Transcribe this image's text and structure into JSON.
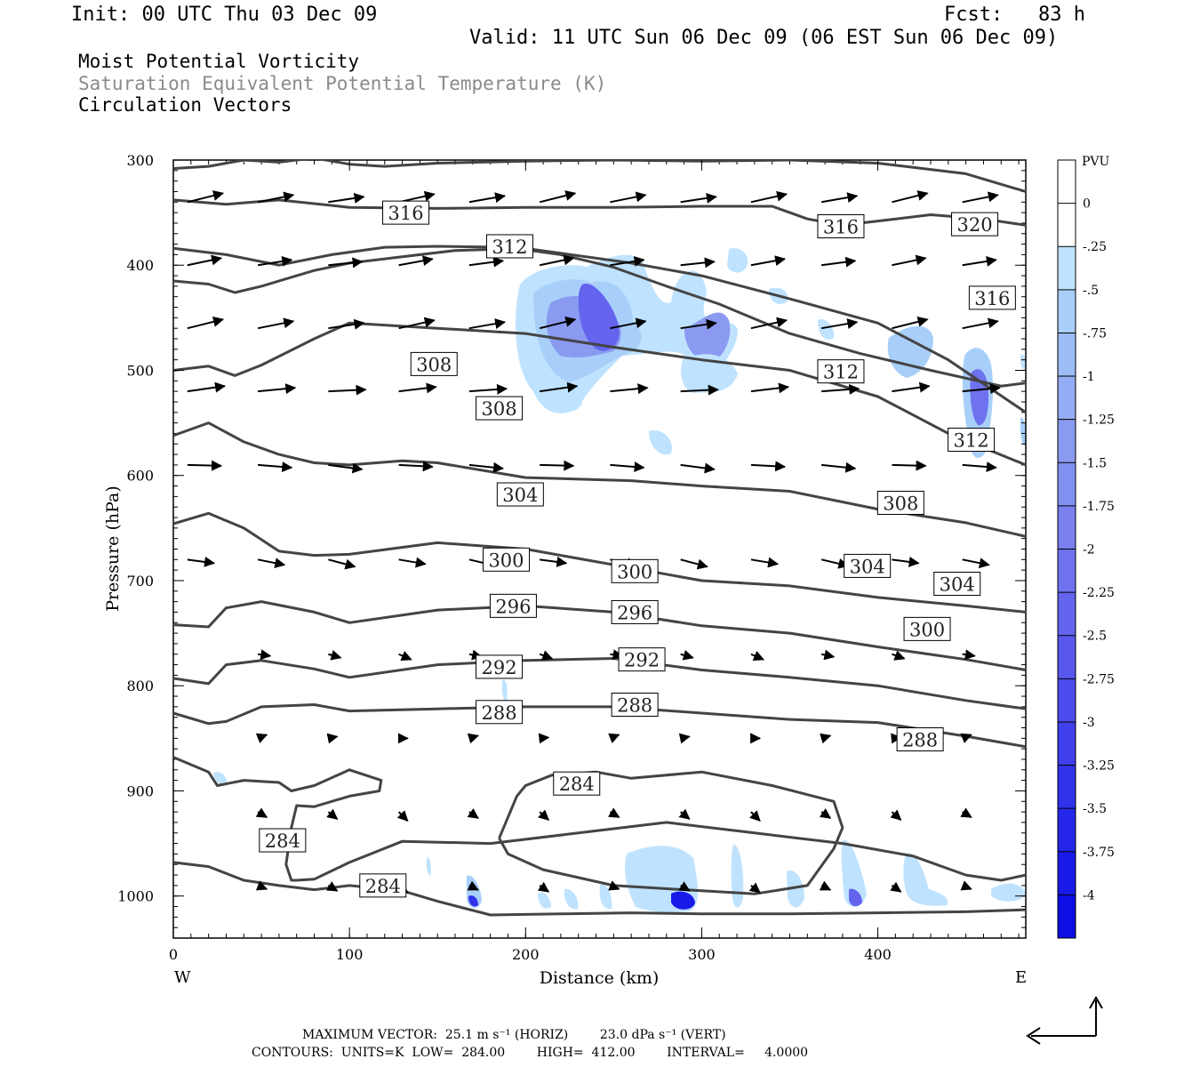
{
  "header": {
    "init": "Init: 00 UTC Thu 03 Dec 09",
    "fcst": "Fcst:   83 h",
    "valid": "Valid: 11 UTC Sun 06 Dec 09 (06 EST Sun 06 Dec 09)",
    "field1": "Moist Potential Vorticity",
    "field2": "Saturation Equivalent Potential Temperature (K)",
    "field3": "Circulation Vectors"
  },
  "footer": {
    "max_vector": "MAXIMUM VECTOR:  25.1 m s⁻¹ (HORIZ)        23.0 dPa s⁻¹ (VERT)",
    "contours": "CONTOURS:  UNITS=K  LOW=  284.00        HIGH=  412.00        INTERVAL=     4.0000"
  },
  "chart_data": {
    "type": "contour",
    "xlabel": "Distance (km)",
    "ylabel": "Pressure (hPa)",
    "xlim": [
      0,
      484
    ],
    "ylim": [
      1040,
      300
    ],
    "x_ticks": [
      "0",
      "100",
      "200",
      "300",
      "400"
    ],
    "y_ticks": [
      "300",
      "400",
      "500",
      "600",
      "700",
      "800",
      "900",
      "1000"
    ],
    "x_end_labels": {
      "left": "W",
      "right": "E"
    },
    "colorbar": {
      "unit": "PVU",
      "labels": [
        "0",
        "-.25",
        "-.5",
        "-.75",
        "-1",
        "-1.25",
        "-1.5",
        "-1.75",
        "-2",
        "-2.25",
        "-2.5",
        "-2.75",
        "-3",
        "-3.25",
        "-3.5",
        "-3.75",
        "-4"
      ],
      "colors": [
        "#ffffff",
        "#ffffff",
        "#bfe3ff",
        "#a8cff9",
        "#9cbdf5",
        "#94acf3",
        "#8a9af1",
        "#8290f1",
        "#7a80f0",
        "#6f72ef",
        "#6464ef",
        "#5858ee",
        "#4c4ced",
        "#3f3fec",
        "#3232eb",
        "#2626ea",
        "#1a1ae8",
        "#0e0ee4"
      ]
    },
    "contour_labels": [
      {
        "text": "316",
        "x": 132,
        "p": 350
      },
      {
        "text": "316",
        "x": 379,
        "p": 363
      },
      {
        "text": "320",
        "x": 455,
        "p": 361
      },
      {
        "text": "312",
        "x": 191,
        "p": 382
      },
      {
        "text": "316",
        "x": 465,
        "p": 431
      },
      {
        "text": "308",
        "x": 148,
        "p": 494
      },
      {
        "text": "312",
        "x": 379,
        "p": 501
      },
      {
        "text": "308",
        "x": 185,
        "p": 536
      },
      {
        "text": "312",
        "x": 453,
        "p": 566
      },
      {
        "text": "304",
        "x": 197,
        "p": 618
      },
      {
        "text": "308",
        "x": 413,
        "p": 626
      },
      {
        "text": "300",
        "x": 189,
        "p": 680
      },
      {
        "text": "300",
        "x": 262,
        "p": 691
      },
      {
        "text": "304",
        "x": 394,
        "p": 686
      },
      {
        "text": "304",
        "x": 445,
        "p": 703
      },
      {
        "text": "296",
        "x": 193,
        "p": 724
      },
      {
        "text": "296",
        "x": 262,
        "p": 730
      },
      {
        "text": "300",
        "x": 428,
        "p": 746
      },
      {
        "text": "292",
        "x": 185,
        "p": 782
      },
      {
        "text": "292",
        "x": 266,
        "p": 775
      },
      {
        "text": "288",
        "x": 185,
        "p": 825
      },
      {
        "text": "288",
        "x": 262,
        "p": 818
      },
      {
        "text": "288",
        "x": 424,
        "p": 851
      },
      {
        "text": "284",
        "x": 229,
        "p": 893
      },
      {
        "text": "284",
        "x": 62,
        "p": 947
      },
      {
        "text": "284",
        "x": 119,
        "p": 990
      }
    ],
    "contour_lines": [
      {
        "x": [
          0,
          20,
          40,
          60,
          80,
          100,
          120,
          150,
          200,
          250,
          300,
          350,
          400,
          450,
          484
        ],
        "p": [
          308,
          306,
          300,
          302,
          298,
          304,
          306,
          303,
          301,
          300,
          301,
          300,
          303,
          313,
          330
        ]
      },
      {
        "x": [
          0,
          30,
          60,
          100,
          150,
          200,
          250,
          300,
          340,
          360,
          380,
          400,
          430,
          460,
          484
        ],
        "p": [
          338,
          342,
          338,
          345,
          346,
          345,
          345,
          344,
          344,
          356,
          362,
          358,
          352,
          356,
          362
        ]
      },
      {
        "x": [
          0,
          30,
          60,
          90,
          120,
          150,
          190,
          220,
          250,
          280,
          310,
          350,
          390,
          430,
          470,
          484
        ],
        "p": [
          384,
          390,
          400,
          390,
          383,
          382,
          383,
          390,
          402,
          420,
          437,
          465,
          484,
          500,
          515,
          512
        ]
      },
      {
        "x": [
          0,
          20,
          35,
          50,
          70,
          80,
          100,
          130,
          160,
          200,
          260,
          300,
          350,
          400,
          440,
          484
        ],
        "p": [
          415,
          418,
          426,
          420,
          410,
          405,
          398,
          392,
          386,
          384,
          398,
          410,
          432,
          455,
          490,
          540
        ]
      },
      {
        "x": [
          0,
          20,
          35,
          50,
          80,
          100,
          150,
          200,
          250,
          300,
          350,
          400,
          440,
          484
        ],
        "p": [
          500,
          496,
          505,
          495,
          470,
          455,
          460,
          465,
          478,
          490,
          500,
          525,
          560,
          590
        ]
      },
      {
        "x": [
          0,
          20,
          40,
          60,
          80,
          100,
          130,
          150,
          200,
          260,
          300,
          350,
          400,
          450,
          484
        ],
        "p": [
          562,
          550,
          568,
          580,
          588,
          590,
          586,
          588,
          602,
          605,
          610,
          615,
          632,
          645,
          658
        ]
      },
      {
        "x": [
          0,
          20,
          40,
          60,
          80,
          100,
          150,
          200,
          250,
          300,
          350,
          400,
          450,
          484
        ],
        "p": [
          646,
          636,
          650,
          672,
          676,
          675,
          664,
          670,
          685,
          700,
          705,
          716,
          724,
          730
        ]
      },
      {
        "x": [
          0,
          20,
          30,
          50,
          80,
          100,
          150,
          200,
          250,
          300,
          350,
          400,
          450,
          484
        ],
        "p": [
          742,
          744,
          726,
          720,
          730,
          740,
          728,
          724,
          730,
          743,
          750,
          763,
          775,
          785
        ]
      },
      {
        "x": [
          0,
          20,
          30,
          50,
          80,
          100,
          150,
          200,
          250,
          300,
          350,
          400,
          450,
          484
        ],
        "p": [
          793,
          798,
          780,
          776,
          784,
          792,
          780,
          776,
          774,
          785,
          792,
          800,
          814,
          822
        ]
      },
      {
        "x": [
          0,
          20,
          30,
          50,
          80,
          100,
          150,
          200,
          250,
          300,
          350,
          400,
          450,
          484
        ],
        "p": [
          826,
          836,
          834,
          820,
          818,
          824,
          822,
          820,
          820,
          826,
          832,
          835,
          848,
          858
        ]
      },
      {
        "x": [
          0,
          20,
          25,
          40,
          60,
          67,
          80,
          100,
          118,
          117,
          100,
          80,
          70,
          67,
          64,
          67,
          70,
          80,
          100,
          130,
          180,
          230,
          280,
          330,
          380,
          420,
          450,
          470,
          484
        ],
        "p": [
          868,
          882,
          895,
          890,
          892,
          900,
          895,
          880,
          890,
          900,
          905,
          915,
          914,
          935,
          970,
          985,
          985,
          984,
          968,
          948,
          950,
          940,
          930,
          940,
          950,
          962,
          980,
          985,
          980
        ]
      },
      {
        "x": [
          185,
          195,
          200,
          215,
          240,
          260,
          300,
          340,
          375,
          380,
          375,
          360,
          330,
          300,
          250,
          210,
          190,
          185
        ],
        "p": [
          945,
          905,
          895,
          885,
          882,
          888,
          882,
          895,
          910,
          935,
          955,
          990,
          998,
          995,
          990,
          975,
          960,
          945
        ]
      },
      {
        "x": [
          0,
          20,
          40,
          60,
          80,
          100,
          130,
          150,
          180,
          220,
          260,
          300,
          350,
          400,
          450,
          484
        ],
        "p": [
          968,
          972,
          985,
          990,
          994,
          990,
          995,
          1005,
          1018,
          1017,
          1016,
          1017,
          1017,
          1016,
          1015,
          1013
        ]
      }
    ],
    "vectors_note": "Circulation vectors: horizontal (m s-1) and vertical (dPa s-1) wind components along the section"
  }
}
